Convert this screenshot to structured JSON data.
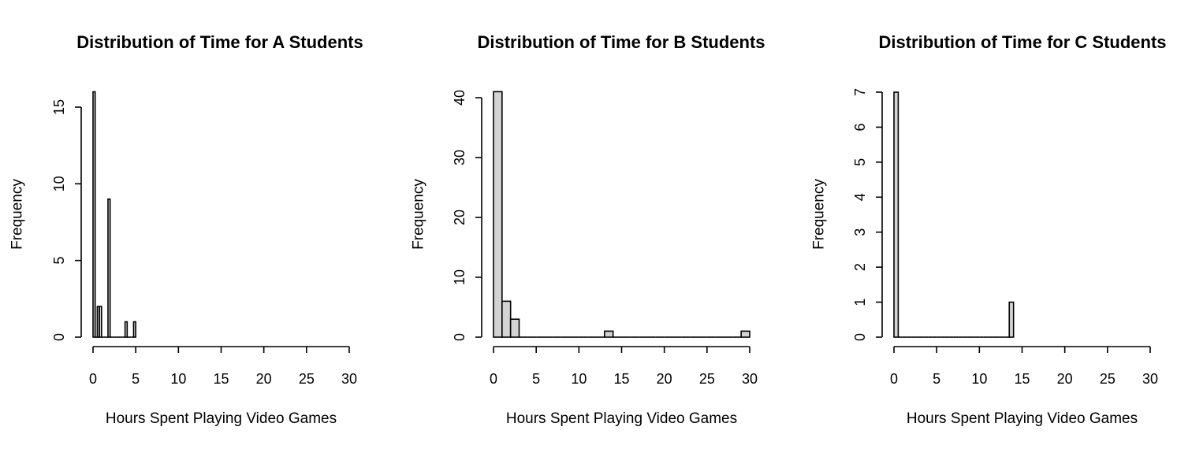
{
  "chart_data": [
    {
      "type": "bar",
      "title": "Distribution of Time for A Students",
      "xlabel": "Hours Spent Playing Video Games",
      "ylabel": "Frequency",
      "xlim": [
        0,
        30
      ],
      "ylim": [
        0,
        16
      ],
      "x_ticks": [
        0,
        5,
        10,
        15,
        20,
        25,
        30
      ],
      "y_ticks": [
        0,
        5,
        10,
        15
      ],
      "bins": [
        {
          "start": 0,
          "end": 0.25,
          "count": 16
        },
        {
          "start": 0.25,
          "end": 0.5,
          "count": 0
        },
        {
          "start": 0.5,
          "end": 0.75,
          "count": 2
        },
        {
          "start": 0.75,
          "end": 1,
          "count": 2
        },
        {
          "start": 1,
          "end": 1.25,
          "count": 0
        },
        {
          "start": 1.25,
          "end": 1.5,
          "count": 0
        },
        {
          "start": 1.5,
          "end": 1.75,
          "count": 0
        },
        {
          "start": 1.75,
          "end": 2,
          "count": 9
        },
        {
          "start": 2,
          "end": 2.25,
          "count": 0
        },
        {
          "start": 2.25,
          "end": 2.5,
          "count": 0
        },
        {
          "start": 2.5,
          "end": 2.75,
          "count": 0
        },
        {
          "start": 2.75,
          "end": 3,
          "count": 0
        },
        {
          "start": 3,
          "end": 3.25,
          "count": 0
        },
        {
          "start": 3.25,
          "end": 3.5,
          "count": 0
        },
        {
          "start": 3.5,
          "end": 3.75,
          "count": 0
        },
        {
          "start": 3.75,
          "end": 4,
          "count": 1
        },
        {
          "start": 4,
          "end": 4.25,
          "count": 0
        },
        {
          "start": 4.25,
          "end": 4.5,
          "count": 0
        },
        {
          "start": 4.5,
          "end": 4.75,
          "count": 0
        },
        {
          "start": 4.75,
          "end": 5,
          "count": 1
        }
      ]
    },
    {
      "type": "bar",
      "title": "Distribution of Time for B Students",
      "xlabel": "Hours Spent Playing Video Games",
      "ylabel": "Frequency",
      "xlim": [
        0,
        30
      ],
      "ylim": [
        0,
        41
      ],
      "x_ticks": [
        0,
        5,
        10,
        15,
        20,
        25,
        30
      ],
      "y_ticks": [
        0,
        10,
        20,
        30,
        40
      ],
      "bins": [
        {
          "start": 0,
          "end": 1,
          "count": 41
        },
        {
          "start": 1,
          "end": 2,
          "count": 6
        },
        {
          "start": 2,
          "end": 3,
          "count": 3
        },
        {
          "start": 3,
          "end": 4,
          "count": 0
        },
        {
          "start": 4,
          "end": 5,
          "count": 0
        },
        {
          "start": 5,
          "end": 6,
          "count": 0
        },
        {
          "start": 6,
          "end": 7,
          "count": 0
        },
        {
          "start": 7,
          "end": 8,
          "count": 0
        },
        {
          "start": 8,
          "end": 9,
          "count": 0
        },
        {
          "start": 9,
          "end": 10,
          "count": 0
        },
        {
          "start": 10,
          "end": 11,
          "count": 0
        },
        {
          "start": 11,
          "end": 12,
          "count": 0
        },
        {
          "start": 12,
          "end": 13,
          "count": 0
        },
        {
          "start": 13,
          "end": 14,
          "count": 1
        },
        {
          "start": 14,
          "end": 15,
          "count": 0
        },
        {
          "start": 15,
          "end": 16,
          "count": 0
        },
        {
          "start": 16,
          "end": 17,
          "count": 0
        },
        {
          "start": 17,
          "end": 18,
          "count": 0
        },
        {
          "start": 18,
          "end": 19,
          "count": 0
        },
        {
          "start": 19,
          "end": 20,
          "count": 0
        },
        {
          "start": 20,
          "end": 21,
          "count": 0
        },
        {
          "start": 21,
          "end": 22,
          "count": 0
        },
        {
          "start": 22,
          "end": 23,
          "count": 0
        },
        {
          "start": 23,
          "end": 24,
          "count": 0
        },
        {
          "start": 24,
          "end": 25,
          "count": 0
        },
        {
          "start": 25,
          "end": 26,
          "count": 0
        },
        {
          "start": 26,
          "end": 27,
          "count": 0
        },
        {
          "start": 27,
          "end": 28,
          "count": 0
        },
        {
          "start": 28,
          "end": 29,
          "count": 0
        },
        {
          "start": 29,
          "end": 30,
          "count": 1
        }
      ]
    },
    {
      "type": "bar",
      "title": "Distribution of Time for C Students",
      "xlabel": "Hours Spent Playing Video Games",
      "ylabel": "Frequency",
      "xlim": [
        0,
        30
      ],
      "ylim": [
        0,
        7
      ],
      "x_ticks": [
        0,
        5,
        10,
        15,
        20,
        25,
        30
      ],
      "y_ticks": [
        0,
        1,
        2,
        3,
        4,
        5,
        6,
        7
      ],
      "bins": [
        {
          "start": 0,
          "end": 0.5,
          "count": 7
        },
        {
          "start": 0.5,
          "end": 1,
          "count": 0
        },
        {
          "start": 1,
          "end": 1.5,
          "count": 0
        },
        {
          "start": 1.5,
          "end": 2,
          "count": 0
        },
        {
          "start": 2,
          "end": 2.5,
          "count": 0
        },
        {
          "start": 2.5,
          "end": 3,
          "count": 0
        },
        {
          "start": 3,
          "end": 3.5,
          "count": 0
        },
        {
          "start": 3.5,
          "end": 4,
          "count": 0
        },
        {
          "start": 4,
          "end": 4.5,
          "count": 0
        },
        {
          "start": 4.5,
          "end": 5,
          "count": 0
        },
        {
          "start": 5,
          "end": 5.5,
          "count": 0
        },
        {
          "start": 5.5,
          "end": 6,
          "count": 0
        },
        {
          "start": 6,
          "end": 6.5,
          "count": 0
        },
        {
          "start": 6.5,
          "end": 7,
          "count": 0
        },
        {
          "start": 7,
          "end": 7.5,
          "count": 0
        },
        {
          "start": 7.5,
          "end": 8,
          "count": 0
        },
        {
          "start": 8,
          "end": 8.5,
          "count": 0
        },
        {
          "start": 8.5,
          "end": 9,
          "count": 0
        },
        {
          "start": 9,
          "end": 9.5,
          "count": 0
        },
        {
          "start": 9.5,
          "end": 10,
          "count": 0
        },
        {
          "start": 10,
          "end": 10.5,
          "count": 0
        },
        {
          "start": 10.5,
          "end": 11,
          "count": 0
        },
        {
          "start": 11,
          "end": 11.5,
          "count": 0
        },
        {
          "start": 11.5,
          "end": 12,
          "count": 0
        },
        {
          "start": 12,
          "end": 12.5,
          "count": 0
        },
        {
          "start": 12.5,
          "end": 13,
          "count": 0
        },
        {
          "start": 13,
          "end": 13.5,
          "count": 0
        },
        {
          "start": 13.5,
          "end": 14,
          "count": 1
        }
      ]
    }
  ]
}
